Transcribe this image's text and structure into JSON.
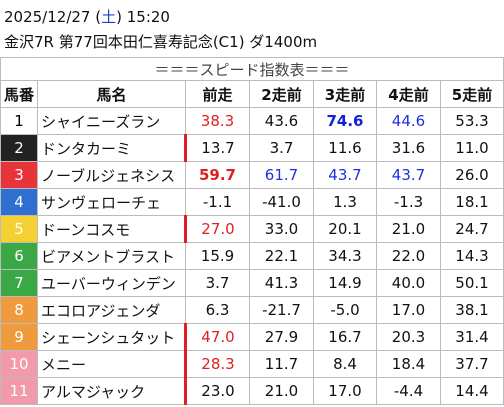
{
  "header": {
    "date": "2025/12/27",
    "weekday": "土",
    "time": "15:20",
    "race": "金沢7R 第77回本田仁喜寿記念(C1) ダ1400m"
  },
  "table": {
    "title": "＝＝＝スピード指数表＝＝＝",
    "columns": [
      "馬番",
      "馬名",
      "前走",
      "2走前",
      "3走前",
      "4走前",
      "5走前"
    ],
    "rows": [
      {
        "number": "1",
        "name": "シャイニーズラン",
        "frame_color": "#ffffff",
        "number_color": "#000000",
        "marker": false,
        "scores": [
          "38.3",
          "43.6",
          "74.6",
          "44.6",
          "53.3"
        ],
        "styles": [
          "red",
          null,
          "bold-blue",
          "blue",
          null
        ]
      },
      {
        "number": "2",
        "name": "ドンタカーミ",
        "frame_color": "#222222",
        "number_color": "#ffffff",
        "marker": true,
        "scores": [
          "13.7",
          "3.7",
          "11.6",
          "31.6",
          "11.0"
        ],
        "styles": [
          null,
          null,
          null,
          null,
          null
        ]
      },
      {
        "number": "3",
        "name": "ノーブルジェネシス",
        "frame_color": "#e8333a",
        "number_color": "#ffffff",
        "marker": false,
        "scores": [
          "59.7",
          "61.7",
          "43.7",
          "43.7",
          "26.0"
        ],
        "styles": [
          "bold-red",
          "blue",
          "blue",
          "blue",
          null
        ]
      },
      {
        "number": "4",
        "name": "サンヴェローチェ",
        "frame_color": "#2f6fd0",
        "number_color": "#ffffff",
        "marker": false,
        "scores": [
          "-1.1",
          "-41.0",
          "1.3",
          "-1.3",
          "18.1"
        ],
        "styles": [
          null,
          null,
          null,
          null,
          null
        ]
      },
      {
        "number": "5",
        "name": "ドーンコスモ",
        "frame_color": "#f5d033",
        "number_color": "#ffffff",
        "marker": true,
        "scores": [
          "27.0",
          "33.0",
          "20.1",
          "21.0",
          "24.7"
        ],
        "styles": [
          "red",
          null,
          null,
          null,
          null
        ]
      },
      {
        "number": "6",
        "name": "ビアメントブラスト",
        "frame_color": "#3aa845",
        "number_color": "#ffffff",
        "marker": false,
        "scores": [
          "15.9",
          "22.1",
          "34.3",
          "22.0",
          "14.3"
        ],
        "styles": [
          null,
          null,
          null,
          null,
          null
        ]
      },
      {
        "number": "7",
        "name": "ユーバーウィンデン",
        "frame_color": "#3aa845",
        "number_color": "#ffffff",
        "marker": false,
        "scores": [
          "3.7",
          "41.3",
          "14.9",
          "40.0",
          "50.1"
        ],
        "styles": [
          null,
          null,
          null,
          null,
          null
        ]
      },
      {
        "number": "8",
        "name": "エコロアジェンダ",
        "frame_color": "#f09a3e",
        "number_color": "#ffffff",
        "marker": false,
        "scores": [
          "6.3",
          "-21.7",
          "-5.0",
          "17.0",
          "38.1"
        ],
        "styles": [
          null,
          null,
          null,
          null,
          null
        ]
      },
      {
        "number": "9",
        "name": "シェーンシュタット",
        "frame_color": "#f09a3e",
        "number_color": "#ffffff",
        "marker": true,
        "scores": [
          "47.0",
          "27.9",
          "16.7",
          "20.3",
          "31.4"
        ],
        "styles": [
          "red",
          null,
          null,
          null,
          null
        ]
      },
      {
        "number": "10",
        "name": "メニー",
        "frame_color": "#f29aaa",
        "number_color": "#ffffff",
        "marker": true,
        "scores": [
          "28.3",
          "11.7",
          "8.4",
          "18.4",
          "37.7"
        ],
        "styles": [
          "red",
          null,
          null,
          null,
          null
        ]
      },
      {
        "number": "11",
        "name": "アルマジャック",
        "frame_color": "#f29aaa",
        "number_color": "#ffffff",
        "marker": true,
        "scores": [
          "23.0",
          "21.0",
          "17.0",
          "-4.4",
          "14.4"
        ],
        "styles": [
          null,
          null,
          null,
          null,
          null
        ]
      }
    ]
  }
}
